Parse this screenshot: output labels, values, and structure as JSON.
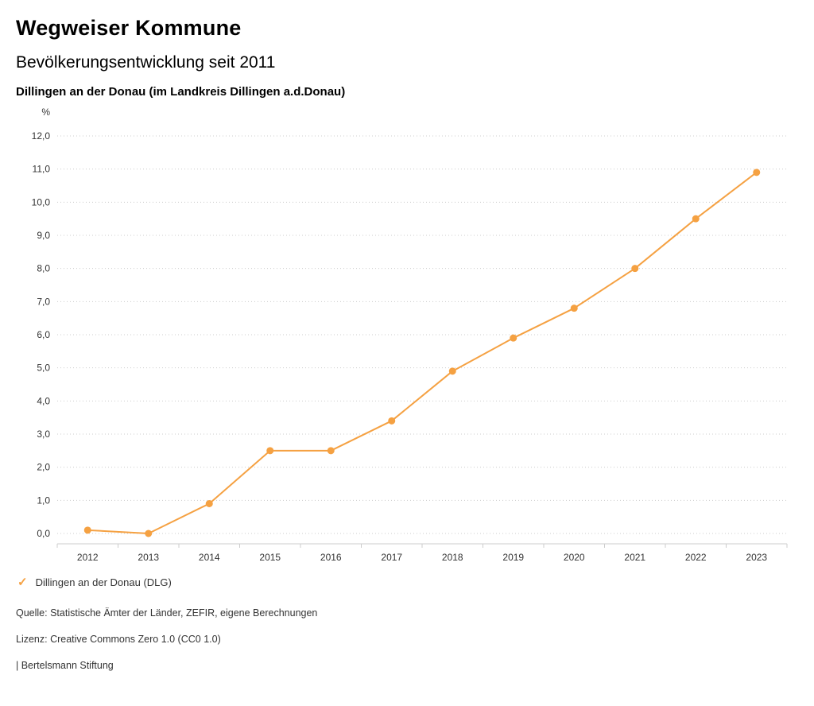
{
  "header": {
    "title": "Wegweiser Kommune",
    "subtitle": "Bevölkerungsentwicklung seit 2011",
    "location": "Dillingen an der Donau (im Landkreis Dillingen a.d.Donau)"
  },
  "chart_data": {
    "type": "line",
    "categories": [
      "2012",
      "2013",
      "2014",
      "2015",
      "2016",
      "2017",
      "2018",
      "2019",
      "2020",
      "2021",
      "2022",
      "2023"
    ],
    "series": [
      {
        "name": "Dillingen an der Donau (DLG)",
        "values": [
          0.1,
          0.0,
          0.9,
          2.5,
          2.5,
          3.4,
          4.9,
          5.9,
          6.8,
          8.0,
          9.5,
          10.9
        ]
      }
    ],
    "title": "Bevölkerungsentwicklung seit 2011",
    "xlabel": "",
    "ylabel": "%",
    "ylim": [
      0,
      12
    ],
    "ytick_step": 1.0,
    "grid": true,
    "legend_position": "bottom",
    "decimal_separator": ","
  },
  "legend": {
    "check_icon": "✓",
    "label": "Dillingen an der Donau (DLG)"
  },
  "footer": {
    "source": "Quelle: Statistische Ämter der Länder, ZEFIR, eigene Berechnungen",
    "license": "Lizenz: Creative Commons Zero 1.0 (CC0 1.0)",
    "attribution": "| Bertelsmann Stiftung"
  },
  "colors": {
    "accent": "#f5a142",
    "grid": "#cccccc",
    "axis_line": "#cccccc",
    "axis_text": "#333333"
  }
}
